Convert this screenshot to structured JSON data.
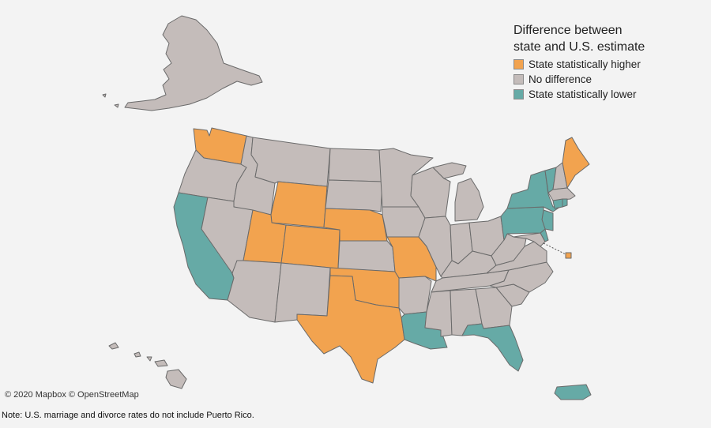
{
  "legend": {
    "title_line1": "Difference between",
    "title_line2": "state and U.S. estimate",
    "items": [
      {
        "key": "higher",
        "label": "State statistically higher",
        "color": "#f2a34f"
      },
      {
        "key": "none",
        "label": "No difference",
        "color": "#c4bcba"
      },
      {
        "key": "lower",
        "label": "State statistically lower",
        "color": "#66aaa6"
      }
    ]
  },
  "colors": {
    "higher": "#f2a34f",
    "none": "#c4bcba",
    "lower": "#66aaa6",
    "border": "#6a6a6a"
  },
  "attribution": "© 2020 Mapbox © OpenStreetMap",
  "note": "Note: U.S. marriage and divorce rates do not include Puerto Rico.",
  "states": [
    {
      "id": "WA",
      "cat": "higher"
    },
    {
      "id": "OR",
      "cat": "none"
    },
    {
      "id": "CA",
      "cat": "lower"
    },
    {
      "id": "ID",
      "cat": "none"
    },
    {
      "id": "NV",
      "cat": "none"
    },
    {
      "id": "MT",
      "cat": "none"
    },
    {
      "id": "WY",
      "cat": "higher"
    },
    {
      "id": "UT",
      "cat": "higher"
    },
    {
      "id": "CO",
      "cat": "higher"
    },
    {
      "id": "AZ",
      "cat": "none"
    },
    {
      "id": "NM",
      "cat": "none"
    },
    {
      "id": "ND",
      "cat": "none"
    },
    {
      "id": "SD",
      "cat": "none"
    },
    {
      "id": "NE",
      "cat": "higher"
    },
    {
      "id": "KS",
      "cat": "none"
    },
    {
      "id": "OK",
      "cat": "higher"
    },
    {
      "id": "TX",
      "cat": "higher"
    },
    {
      "id": "MN",
      "cat": "none"
    },
    {
      "id": "IA",
      "cat": "none"
    },
    {
      "id": "MO",
      "cat": "higher"
    },
    {
      "id": "AR",
      "cat": "none"
    },
    {
      "id": "LA",
      "cat": "lower"
    },
    {
      "id": "WI",
      "cat": "none"
    },
    {
      "id": "IL",
      "cat": "none"
    },
    {
      "id": "MI",
      "cat": "none"
    },
    {
      "id": "IN",
      "cat": "none"
    },
    {
      "id": "OH",
      "cat": "none"
    },
    {
      "id": "KY",
      "cat": "none"
    },
    {
      "id": "TN",
      "cat": "none"
    },
    {
      "id": "MS",
      "cat": "none"
    },
    {
      "id": "AL",
      "cat": "none"
    },
    {
      "id": "GA",
      "cat": "none"
    },
    {
      "id": "FL",
      "cat": "lower"
    },
    {
      "id": "SC",
      "cat": "none"
    },
    {
      "id": "NC",
      "cat": "none"
    },
    {
      "id": "VA",
      "cat": "none"
    },
    {
      "id": "WV",
      "cat": "none"
    },
    {
      "id": "PA",
      "cat": "lower"
    },
    {
      "id": "NY",
      "cat": "lower"
    },
    {
      "id": "VT",
      "cat": "lower"
    },
    {
      "id": "NH",
      "cat": "none"
    },
    {
      "id": "ME",
      "cat": "higher"
    },
    {
      "id": "MA",
      "cat": "none"
    },
    {
      "id": "CT",
      "cat": "lower"
    },
    {
      "id": "RI",
      "cat": "lower"
    },
    {
      "id": "NJ",
      "cat": "lower"
    },
    {
      "id": "DE",
      "cat": "lower"
    },
    {
      "id": "MD",
      "cat": "none"
    },
    {
      "id": "DC",
      "cat": "higher"
    },
    {
      "id": "AK",
      "cat": "none"
    },
    {
      "id": "HI",
      "cat": "none"
    },
    {
      "id": "PR",
      "cat": "lower"
    }
  ]
}
